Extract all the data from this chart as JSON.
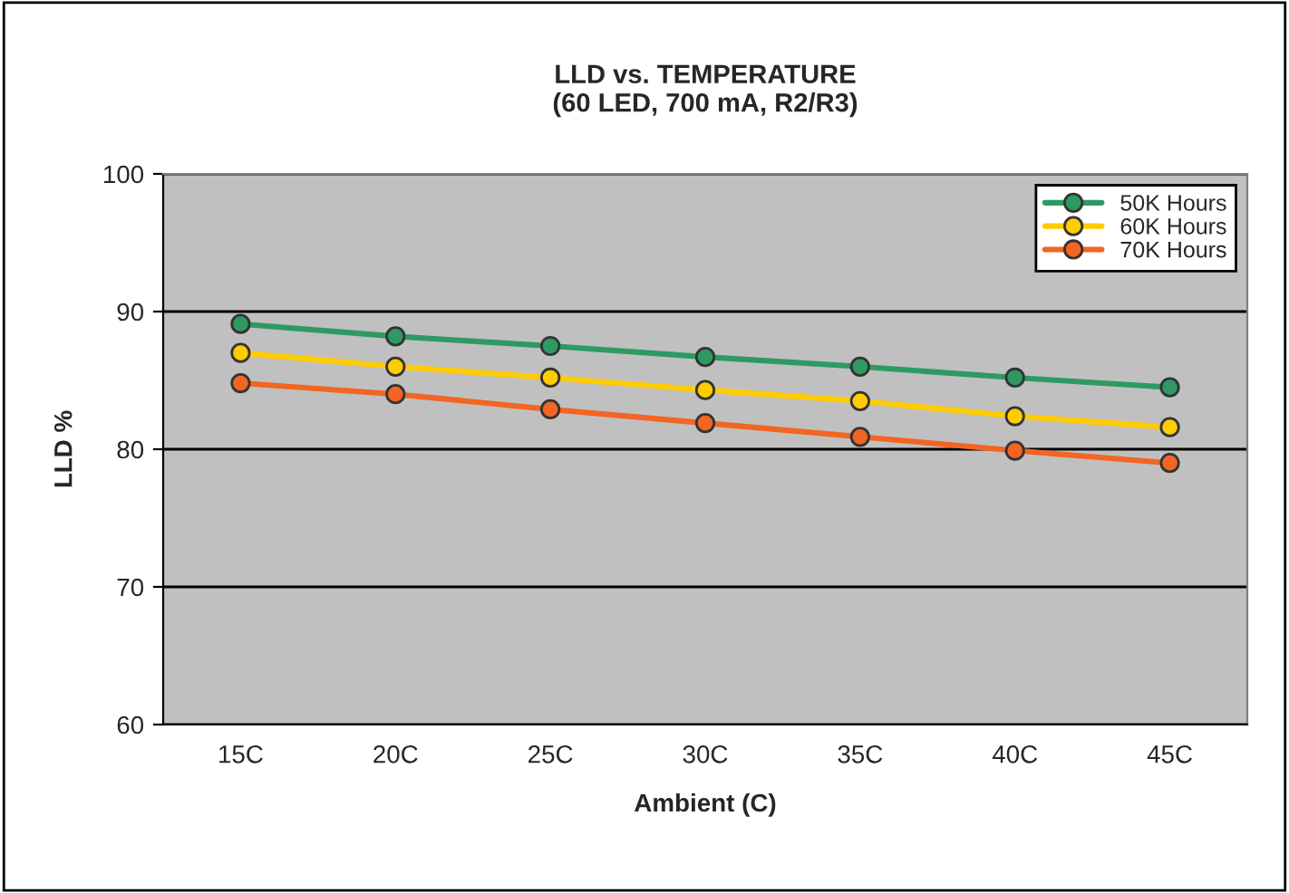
{
  "chart_data": {
    "type": "line",
    "title": "LLD vs. TEMPERATURE\n(60 LED, 700 mA, R2/R3)",
    "xlabel": "Ambient (C)",
    "ylabel": "LLD %",
    "categories": [
      "15C",
      "20C",
      "25C",
      "30C",
      "35C",
      "40C",
      "45C"
    ],
    "series": [
      {
        "name": "50K Hours",
        "color": "#2e9a62",
        "values": [
          89.1,
          88.2,
          87.5,
          86.7,
          86.0,
          85.2,
          84.5
        ]
      },
      {
        "name": "60K Hours",
        "color": "#ffcc00",
        "values": [
          87.0,
          86.0,
          85.2,
          84.3,
          83.5,
          82.4,
          81.6
        ]
      },
      {
        "name": "70K Hours",
        "color": "#f26522",
        "values": [
          84.8,
          84.0,
          82.9,
          81.9,
          80.9,
          79.9,
          79.0
        ]
      }
    ],
    "ylim": [
      60,
      100
    ],
    "yticks": [
      60,
      70,
      80,
      90,
      100
    ],
    "grid": "y",
    "legend": "top right",
    "marker": "circle",
    "line_style": "solid"
  }
}
